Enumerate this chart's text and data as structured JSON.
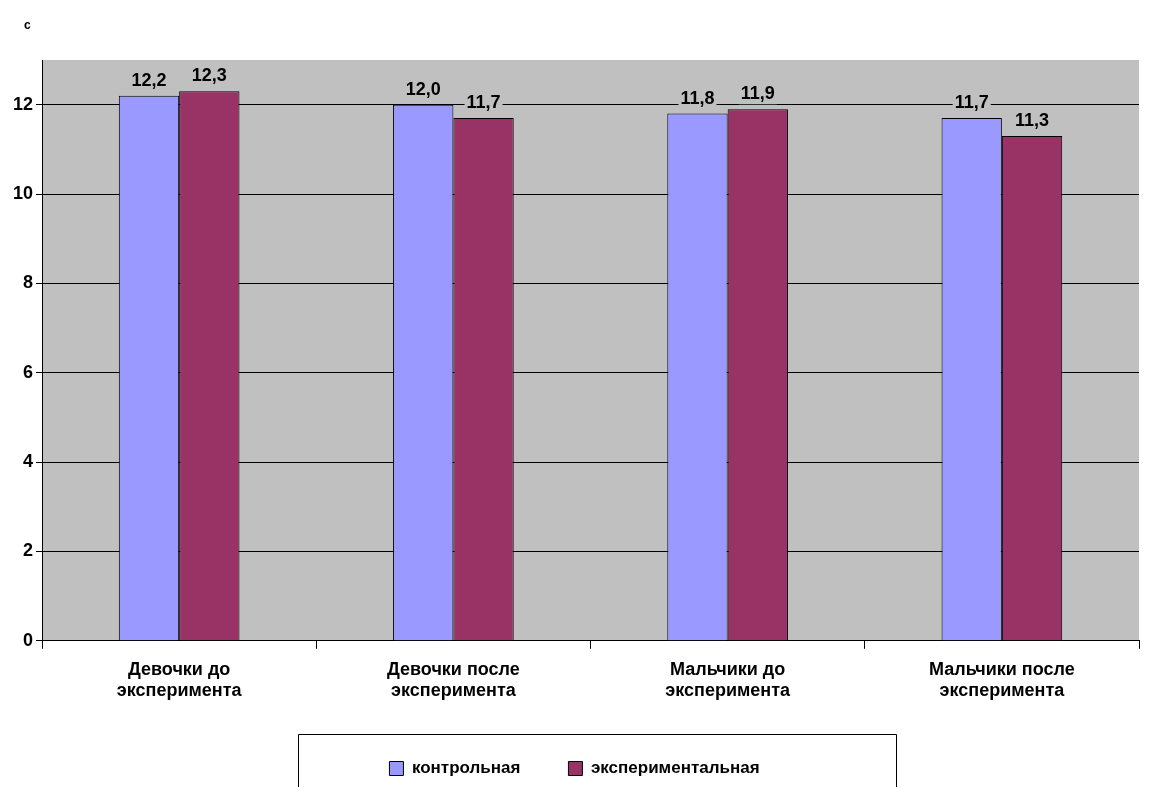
{
  "chart_data": {
    "type": "bar",
    "ylabel": "с",
    "categories": [
      "Девочки до эксперимента",
      "Девочки после эксперимента",
      "Мальчики до эксперимента",
      "Мальчики после эксперимента"
    ],
    "series": [
      {
        "name": "контрольная",
        "color": "#9999ff",
        "values": [
          12.2,
          12.0,
          11.8,
          11.7
        ],
        "value_labels": [
          "12,2",
          "12,0",
          "11,8",
          "11,7"
        ]
      },
      {
        "name": "экспериментальная",
        "color": "#993366",
        "values": [
          12.3,
          11.7,
          11.9,
          11.3
        ],
        "value_labels": [
          "12,3",
          "11,7",
          "11,9",
          "11,3"
        ]
      }
    ],
    "ylim": [
      0,
      13
    ],
    "yticks": [
      0,
      2,
      4,
      6,
      8,
      10,
      12
    ],
    "grid": "y",
    "legend": "bottom"
  }
}
